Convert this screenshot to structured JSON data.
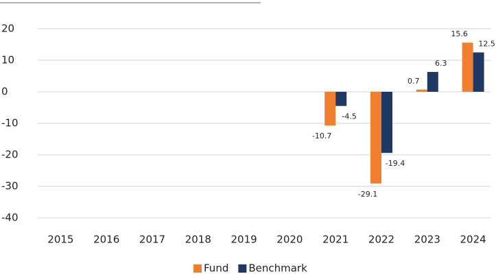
{
  "chart_data": {
    "type": "bar",
    "categories": [
      "2015",
      "2016",
      "2017",
      "2018",
      "2019",
      "2020",
      "2021",
      "2022",
      "2023",
      "2024"
    ],
    "series": [
      {
        "name": "Fund",
        "color": "#f08030",
        "values": [
          null,
          null,
          null,
          null,
          null,
          null,
          -10.7,
          -29.1,
          0.7,
          15.6
        ]
      },
      {
        "name": "Benchmark",
        "color": "#1f3864",
        "values": [
          null,
          null,
          null,
          null,
          null,
          null,
          -4.5,
          -19.4,
          6.3,
          12.5
        ]
      }
    ],
    "ylim": [
      -40,
      20
    ],
    "yticks": [
      -40,
      -30,
      -20,
      -10,
      0,
      10,
      20
    ],
    "grid": true,
    "legend": "bottom"
  }
}
